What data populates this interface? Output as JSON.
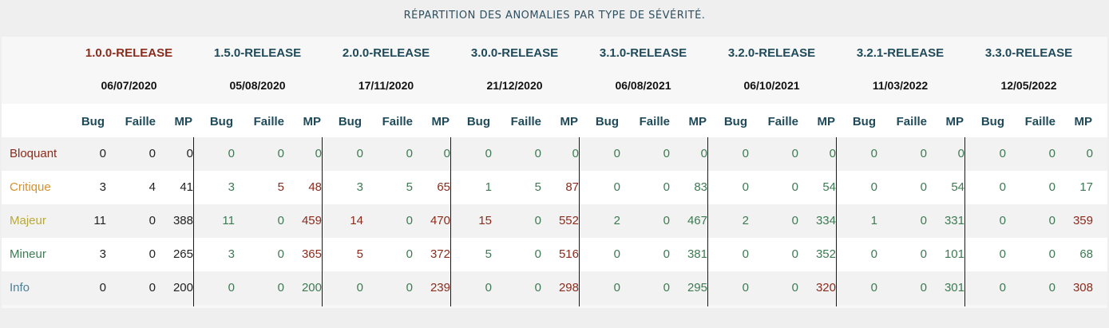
{
  "title": "RÉPARTITION DES ANOMALIES PAR TYPE DE SÉVÉRITÉ.",
  "colors": {
    "header_accent": "#8a2b1c",
    "header_default": "#1f4a5a",
    "green": "#3d7a52",
    "red": "#8a2b1c",
    "black": "#222222"
  },
  "subheaders": [
    "Bug",
    "Faille",
    "MP"
  ],
  "releases": [
    {
      "name": "1.0.0-RELEASE",
      "date": "06/07/2020"
    },
    {
      "name": "1.5.0-RELEASE",
      "date": "05/08/2020"
    },
    {
      "name": "2.0.0-RELEASE",
      "date": "17/11/2020"
    },
    {
      "name": "3.0.0-RELEASE",
      "date": "21/12/2020"
    },
    {
      "name": "3.1.0-RELEASE",
      "date": "06/08/2021"
    },
    {
      "name": "3.2.0-RELEASE",
      "date": "06/10/2021"
    },
    {
      "name": "3.2.1-RELEASE",
      "date": "11/03/2022"
    },
    {
      "name": "3.3.0-RELEASE",
      "date": "12/05/2022"
    }
  ],
  "rows": [
    {
      "label": "Bloquant",
      "label_color": "#8a2b1c",
      "values": [
        0,
        0,
        0,
        0,
        0,
        0,
        0,
        0,
        0,
        0,
        0,
        0,
        0,
        0,
        0,
        0,
        0,
        0,
        0,
        0,
        0,
        0,
        0,
        0
      ]
    },
    {
      "label": "Critique",
      "label_color": "#d4922e",
      "values": [
        3,
        4,
        41,
        3,
        5,
        48,
        3,
        5,
        65,
        1,
        5,
        87,
        0,
        0,
        83,
        0,
        0,
        54,
        0,
        0,
        54,
        0,
        0,
        17
      ]
    },
    {
      "label": "Majeur",
      "label_color": "#b8a93c",
      "values": [
        11,
        0,
        388,
        11,
        0,
        459,
        14,
        0,
        470,
        15,
        0,
        552,
        2,
        0,
        467,
        2,
        0,
        334,
        1,
        0,
        331,
        0,
        0,
        359
      ]
    },
    {
      "label": "Mineur",
      "label_color": "#3d7a52",
      "values": [
        3,
        0,
        265,
        3,
        0,
        365,
        5,
        0,
        372,
        5,
        0,
        516,
        0,
        0,
        381,
        0,
        0,
        352,
        0,
        0,
        101,
        0,
        0,
        68
      ]
    },
    {
      "label": "Info",
      "label_color": "#4f7f95",
      "values": [
        0,
        0,
        200,
        0,
        0,
        200,
        0,
        0,
        239,
        0,
        0,
        298,
        0,
        0,
        295,
        0,
        0,
        320,
        0,
        0,
        301,
        0,
        0,
        308
      ]
    }
  ],
  "cell_colors": [
    [
      "k",
      "k",
      "k",
      "g",
      "g",
      "g",
      "g",
      "g",
      "g",
      "g",
      "g",
      "g",
      "g",
      "g",
      "g",
      "g",
      "g",
      "g",
      "g",
      "g",
      "g",
      "g",
      "g",
      "g"
    ],
    [
      "k",
      "k",
      "k",
      "g",
      "r",
      "r",
      "g",
      "g",
      "r",
      "g",
      "g",
      "r",
      "g",
      "g",
      "g",
      "g",
      "g",
      "g",
      "g",
      "g",
      "g",
      "g",
      "g",
      "g"
    ],
    [
      "k",
      "k",
      "k",
      "g",
      "g",
      "r",
      "r",
      "g",
      "r",
      "r",
      "g",
      "r",
      "g",
      "g",
      "g",
      "g",
      "g",
      "g",
      "g",
      "g",
      "g",
      "g",
      "g",
      "r"
    ],
    [
      "k",
      "k",
      "k",
      "g",
      "g",
      "r",
      "r",
      "g",
      "r",
      "g",
      "g",
      "r",
      "g",
      "g",
      "g",
      "g",
      "g",
      "g",
      "g",
      "g",
      "g",
      "g",
      "g",
      "g"
    ],
    [
      "k",
      "k",
      "k",
      "g",
      "g",
      "g",
      "g",
      "g",
      "r",
      "g",
      "g",
      "r",
      "g",
      "g",
      "g",
      "g",
      "g",
      "r",
      "g",
      "g",
      "g",
      "g",
      "g",
      "r"
    ]
  ]
}
